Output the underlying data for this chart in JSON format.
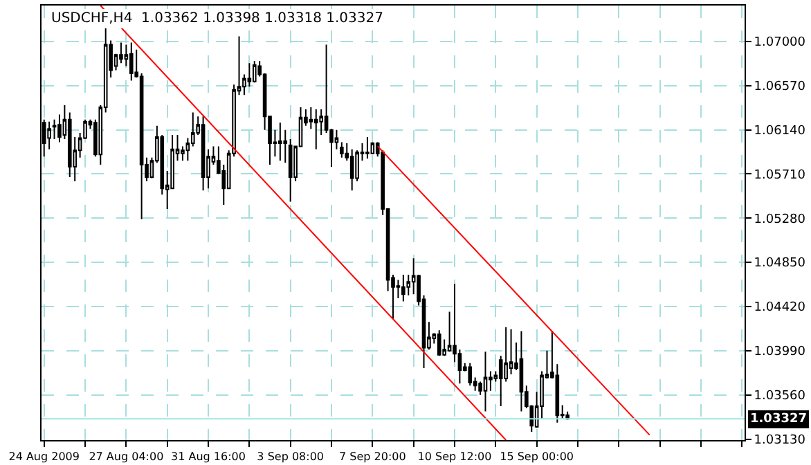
{
  "chart_data": {
    "type": "candlestick",
    "title": "USDCHF,H4  1.03362 1.03398 1.03318 1.03327",
    "categories": [
      "24 Aug 2009",
      null,
      null,
      null,
      null,
      null,
      null,
      null,
      null,
      null,
      null,
      null,
      null,
      null,
      null,
      null,
      "27 Aug 04:00",
      null,
      null,
      null,
      null,
      null,
      null,
      null,
      null,
      null,
      null,
      null,
      null,
      null,
      null,
      null,
      "31 Aug 16:00",
      null,
      null,
      null,
      null,
      null,
      null,
      null,
      null,
      null,
      null,
      null,
      null,
      null,
      null,
      null,
      "3 Sep 08:00",
      null,
      null,
      null,
      null,
      null,
      null,
      null,
      null,
      null,
      null,
      null,
      null,
      null,
      null,
      null,
      "7 Sep 20:00",
      null,
      null,
      null,
      null,
      null,
      null,
      null,
      null,
      null,
      null,
      null,
      null,
      null,
      null,
      null,
      "10 Sep 12:00",
      null,
      null,
      null,
      null,
      null,
      null,
      null,
      null,
      null,
      null,
      null,
      null,
      null,
      null,
      null,
      "15 Sep 00:00",
      null,
      null,
      null,
      null,
      null,
      null,
      null,
      null,
      null,
      null,
      null,
      null,
      null,
      null,
      null,
      null,
      null,
      null,
      null,
      null,
      null,
      null,
      null,
      null,
      null,
      null,
      null,
      null,
      null,
      null,
      null,
      null,
      null,
      null,
      null,
      null,
      null,
      null,
      null,
      null
    ],
    "ohlc": [
      [
        1.0621,
        1.0624,
        1.0588,
        1.0601
      ],
      [
        1.0606,
        1.0622,
        1.0595,
        1.0615
      ],
      [
        1.0617,
        1.0624,
        1.0605,
        1.0618
      ],
      [
        1.0619,
        1.0629,
        1.0602,
        1.0607
      ],
      [
        1.0609,
        1.0638,
        1.0605,
        1.0624
      ],
      [
        1.0624,
        1.0631,
        1.0568,
        1.0578
      ],
      [
        1.0578,
        1.0607,
        1.0564,
        1.0594
      ],
      [
        1.0594,
        1.0611,
        1.0587,
        1.0606
      ],
      [
        1.0606,
        1.0624,
        1.0605,
        1.0622
      ],
      [
        1.0622,
        1.0624,
        1.0615,
        1.0619
      ],
      [
        1.0621,
        1.0624,
        1.0588,
        1.059
      ],
      [
        1.059,
        1.0638,
        1.058,
        1.0636
      ],
      [
        1.0636,
        1.0713,
        1.0631,
        1.0697
      ],
      [
        1.0697,
        1.0701,
        1.0665,
        1.0672
      ],
      [
        1.0676,
        1.0688,
        1.0672,
        1.0687
      ],
      [
        1.0687,
        1.0699,
        1.0679,
        1.0683
      ],
      [
        1.0683,
        1.0697,
        1.0676,
        1.0687
      ],
      [
        1.0688,
        1.0699,
        1.0662,
        1.0669
      ],
      [
        1.067,
        1.0692,
        1.0665,
        1.0666
      ],
      [
        1.0666,
        1.0669,
        1.0527,
        1.058
      ],
      [
        1.058,
        1.0587,
        1.0564,
        1.0568
      ],
      [
        1.0568,
        1.0587,
        1.0567,
        1.0584
      ],
      [
        1.0584,
        1.0618,
        1.0582,
        1.0607
      ],
      [
        1.0607,
        1.0609,
        1.0551,
        1.0557
      ],
      [
        1.0556,
        1.0574,
        1.0537,
        1.056
      ],
      [
        1.0557,
        1.0609,
        1.0557,
        1.0595
      ],
      [
        1.0591,
        1.0609,
        1.0584,
        1.0595
      ],
      [
        1.0591,
        1.0598,
        1.0584,
        1.0594
      ],
      [
        1.0594,
        1.0606,
        1.0584,
        1.0601
      ],
      [
        1.0601,
        1.0631,
        1.0598,
        1.0611
      ],
      [
        1.0611,
        1.0627,
        1.0609,
        1.0619
      ],
      [
        1.0619,
        1.0627,
        1.0555,
        1.0568
      ],
      [
        1.0568,
        1.0595,
        1.0557,
        1.0588
      ],
      [
        1.0583,
        1.0598,
        1.058,
        1.0588
      ],
      [
        1.0584,
        1.0598,
        1.0571,
        1.0572
      ],
      [
        1.0574,
        1.058,
        1.0541,
        1.0557
      ],
      [
        1.0557,
        1.0594,
        1.0557,
        1.0591
      ],
      [
        1.0591,
        1.0658,
        1.0588,
        1.0653
      ],
      [
        1.0652,
        1.0705,
        1.0648,
        1.0656
      ],
      [
        1.0656,
        1.0668,
        1.0648,
        1.0664
      ],
      [
        1.0664,
        1.0679,
        1.0656,
        1.0661
      ],
      [
        1.0661,
        1.0681,
        1.066,
        1.0677
      ],
      [
        1.0676,
        1.0681,
        1.0666,
        1.0668
      ],
      [
        1.0668,
        1.0669,
        1.0614,
        1.0627
      ],
      [
        1.0627,
        1.0627,
        1.058,
        1.0601
      ],
      [
        1.0602,
        1.0614,
        1.0588,
        1.0601
      ],
      [
        1.0603,
        1.0621,
        1.0584,
        1.0601
      ],
      [
        1.0603,
        1.0614,
        1.0582,
        1.0601
      ],
      [
        1.0599,
        1.0605,
        1.0544,
        1.0568
      ],
      [
        1.0568,
        1.0598,
        1.0564,
        1.0598
      ],
      [
        1.0598,
        1.0636,
        1.0598,
        1.0626
      ],
      [
        1.0626,
        1.0634,
        1.0618,
        1.0621
      ],
      [
        1.0624,
        1.0636,
        1.0615,
        1.0622
      ],
      [
        1.0624,
        1.0634,
        1.0595,
        1.0621
      ],
      [
        1.0622,
        1.0634,
        1.0609,
        1.0627
      ],
      [
        1.0627,
        1.0697,
        1.0611,
        1.0614
      ],
      [
        1.0614,
        1.0615,
        1.0578,
        1.0602
      ],
      [
        1.0602,
        1.0614,
        1.0595,
        1.0606
      ],
      [
        1.0597,
        1.0602,
        1.0587,
        1.0591
      ],
      [
        1.0591,
        1.0601,
        1.0584,
        1.0587
      ],
      [
        1.0588,
        1.0595,
        1.0555,
        1.0567
      ],
      [
        1.0567,
        1.0594,
        1.0564,
        1.0592
      ],
      [
        1.0591,
        1.0601,
        1.0584,
        1.0592
      ],
      [
        1.0592,
        1.0607,
        1.0586,
        1.0591
      ],
      [
        1.0591,
        1.0602,
        1.0591,
        1.0601
      ],
      [
        1.0601,
        1.0602,
        1.0588,
        1.0591
      ],
      [
        1.0592,
        1.0594,
        1.0531,
        1.0537
      ],
      [
        1.0537,
        1.0537,
        1.0457,
        1.0468
      ],
      [
        1.047,
        1.0473,
        1.043,
        1.0461
      ],
      [
        1.0462,
        1.0468,
        1.045,
        1.0461
      ],
      [
        1.0461,
        1.0473,
        1.0447,
        1.0454
      ],
      [
        1.0461,
        1.0473,
        1.0453,
        1.0466
      ],
      [
        1.0466,
        1.0489,
        1.0454,
        1.0472
      ],
      [
        1.0472,
        1.0473,
        1.0443,
        1.0447
      ],
      [
        1.0449,
        1.0453,
        1.0382,
        1.0402
      ],
      [
        1.0402,
        1.0427,
        1.04,
        1.0412
      ],
      [
        1.0411,
        1.0416,
        1.0406,
        1.0415
      ],
      [
        1.0415,
        1.0419,
        1.0394,
        1.0395
      ],
      [
        1.0395,
        1.041,
        1.0394,
        1.04
      ],
      [
        1.0399,
        1.0437,
        1.0398,
        1.0404
      ],
      [
        1.0404,
        1.0464,
        1.0388,
        1.0396
      ],
      [
        1.0396,
        1.04,
        1.0367,
        1.038
      ],
      [
        1.0383,
        1.0387,
        1.0379,
        1.038
      ],
      [
        1.0383,
        1.0387,
        1.0365,
        1.0368
      ],
      [
        1.0369,
        1.0373,
        1.036,
        1.0365
      ],
      [
        1.0367,
        1.0369,
        1.0356,
        1.036
      ],
      [
        1.036,
        1.0398,
        1.034,
        1.0373
      ],
      [
        1.0371,
        1.0379,
        1.036,
        1.0373
      ],
      [
        1.0372,
        1.0379,
        1.0369,
        1.0375
      ],
      [
        1.039,
        1.0394,
        1.0345,
        1.0372
      ],
      [
        1.0372,
        1.0422,
        1.0369,
        1.0387
      ],
      [
        1.0382,
        1.042,
        1.0376,
        1.0388
      ],
      [
        1.0387,
        1.0407,
        1.038,
        1.0382
      ],
      [
        1.0391,
        1.0418,
        1.034,
        1.0359
      ],
      [
        1.0359,
        1.0365,
        1.0343,
        1.0345
      ],
      [
        1.0345,
        1.0346,
        1.032,
        1.0326
      ],
      [
        1.0325,
        1.0359,
        1.0324,
        1.0345
      ],
      [
        1.0345,
        1.0379,
        1.0333,
        1.0375
      ],
      [
        1.0373,
        1.0399,
        1.0372,
        1.0376
      ],
      [
        1.0378,
        1.0418,
        1.0372,
        1.0373
      ],
      [
        1.0375,
        1.0386,
        1.0329,
        1.0336
      ],
      [
        1.0337,
        1.0346,
        1.0333,
        1.0336
      ],
      [
        1.03362,
        1.03398,
        1.03318,
        1.03327
      ],
      null,
      null,
      null,
      null,
      null,
      null,
      null,
      null,
      null,
      null,
      null,
      null,
      null,
      null,
      null,
      null,
      null,
      null,
      null,
      null,
      null,
      null,
      null,
      null,
      null,
      null,
      null,
      null,
      null,
      null,
      null,
      null,
      null,
      null
    ],
    "series": [
      {
        "type": "line",
        "color": "#ff0000",
        "values": [
          null,
          null,
          null,
          null,
          null,
          null,
          null,
          null,
          null,
          null,
          null,
          1.0735,
          null,
          null,
          null,
          null,
          null,
          null,
          null,
          null,
          null,
          null,
          null,
          null,
          null,
          null,
          null,
          null,
          null,
          null,
          null,
          null,
          null,
          null,
          null,
          null,
          null,
          null,
          null,
          null,
          null,
          null,
          null,
          null,
          null,
          null,
          null,
          null,
          null,
          null,
          null,
          null,
          null,
          null,
          null,
          null,
          null,
          null,
          null,
          null,
          null,
          null,
          null,
          null,
          null,
          null,
          null,
          null,
          null,
          null,
          null,
          null,
          null,
          null,
          null,
          null,
          null,
          null,
          null,
          null,
          null,
          null,
          null,
          null,
          null,
          null,
          null,
          null,
          null,
          null,
          1.0312,
          null,
          null,
          null,
          null,
          null,
          null,
          null,
          null,
          null,
          null,
          null,
          null,
          null,
          null,
          null,
          null,
          null,
          null,
          null,
          null,
          null,
          null,
          null,
          null,
          null,
          null,
          null,
          null,
          null,
          null,
          null,
          null,
          null,
          null,
          null,
          null,
          null,
          null,
          null,
          null,
          null,
          null,
          null,
          null,
          null,
          null
        ]
      },
      {
        "type": "line",
        "color": "#ff0000",
        "values": [
          null,
          null,
          null,
          null,
          null,
          null,
          null,
          null,
          null,
          null,
          null,
          null,
          null,
          null,
          null,
          null,
          null,
          null,
          null,
          null,
          null,
          null,
          null,
          null,
          null,
          null,
          null,
          null,
          null,
          null,
          null,
          null,
          null,
          null,
          null,
          null,
          null,
          null,
          null,
          null,
          null,
          null,
          null,
          null,
          null,
          null,
          null,
          null,
          null,
          null,
          null,
          null,
          null,
          null,
          null,
          null,
          null,
          null,
          null,
          null,
          null,
          null,
          null,
          null,
          null,
          1.0598,
          null,
          null,
          null,
          null,
          null,
          null,
          null,
          null,
          null,
          null,
          null,
          null,
          null,
          null,
          null,
          null,
          null,
          null,
          null,
          null,
          null,
          null,
          null,
          null,
          null,
          null,
          null,
          null,
          null,
          null,
          null,
          null,
          null,
          null,
          null,
          null,
          null,
          null,
          null,
          null,
          null,
          null,
          null,
          null,
          null,
          null,
          null,
          null,
          null,
          null,
          null,
          null,
          1.0317,
          null,
          null,
          null,
          null,
          null,
          null,
          null,
          null,
          null,
          null,
          null,
          null,
          null,
          null,
          null,
          null,
          null,
          null
        ]
      }
    ],
    "ylim": [
      1.0312,
      1.0735
    ],
    "yticks": [
      {
        "value": 1.0313,
        "label": "1.03130"
      },
      {
        "value": 1.0356,
        "label": "1.03560"
      },
      {
        "value": 1.0399,
        "label": "1.03990"
      },
      {
        "value": 1.0442,
        "label": "1.04420"
      },
      {
        "value": 1.0485,
        "label": "1.04850"
      },
      {
        "value": 1.0528,
        "label": "1.05280"
      },
      {
        "value": 1.0571,
        "label": "1.05710"
      },
      {
        "value": 1.0614,
        "label": "1.06140"
      },
      {
        "value": 1.0657,
        "label": "1.06570"
      },
      {
        "value": 1.07,
        "label": "1.07000"
      }
    ],
    "ref_lines": [
      {
        "axis": "y",
        "value": 1.03327,
        "label": "1.03327",
        "color": "#9ee6e6"
      }
    ],
    "grid": true
  }
}
